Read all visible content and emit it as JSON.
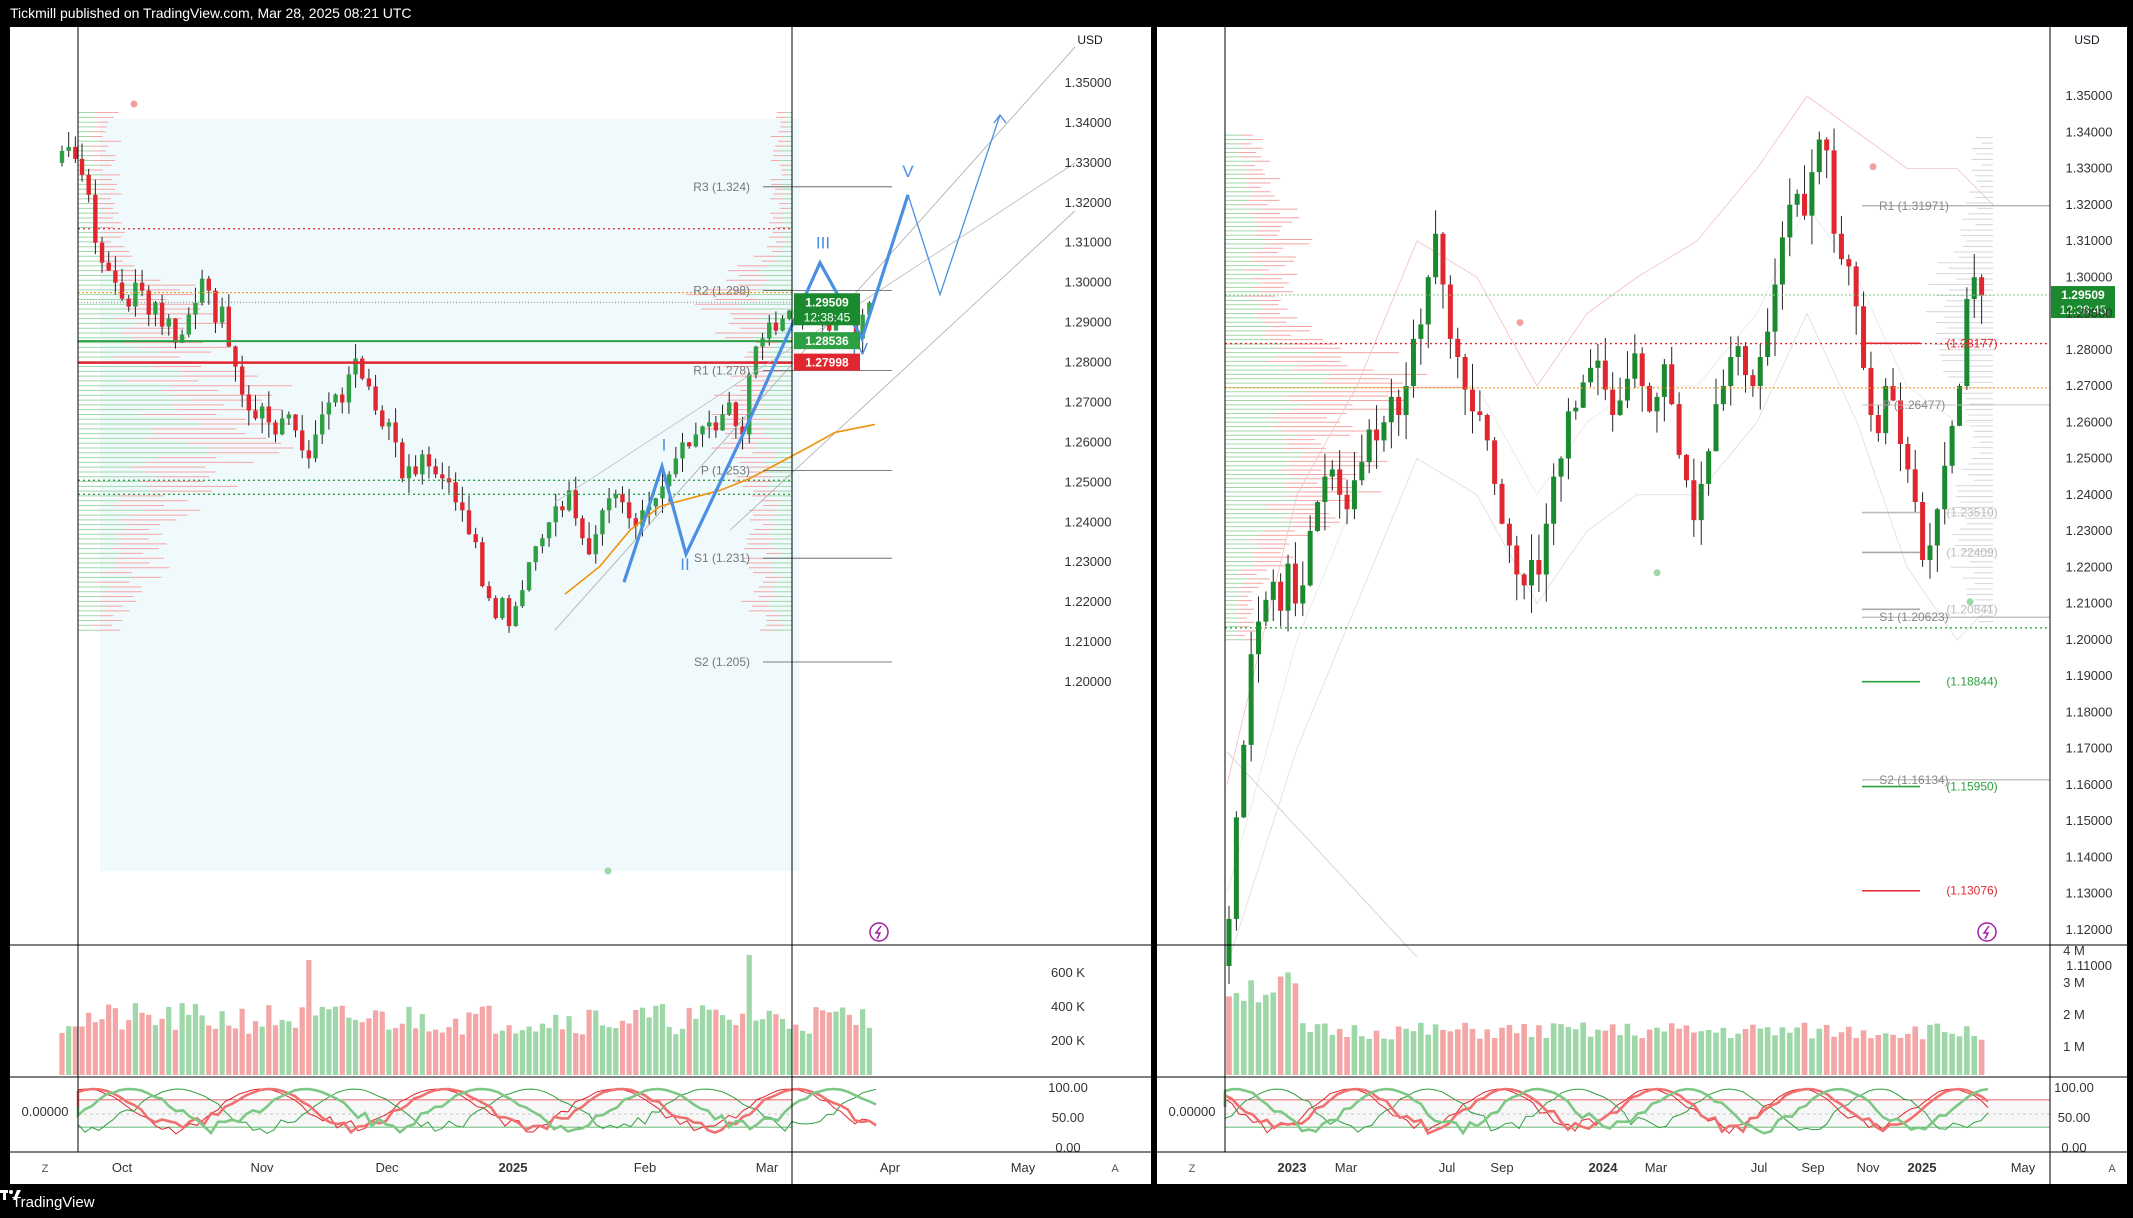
{
  "header": {
    "publisher": "Tickmill published on TradingView.com, Mar 28, 2025 08:21 UTC"
  },
  "footer": {
    "brand": "TradingView"
  },
  "colors": {
    "up": "#089981",
    "up_bar": "#2ea043",
    "down": "#e0262e",
    "wave": "#4a90e2",
    "ma": "#f0930d"
  },
  "left_chart": {
    "currency": "USD",
    "price_axis": [
      "1.35000",
      "1.34000",
      "1.33000",
      "1.32000",
      "1.31000",
      "1.30000",
      "1.29000",
      "1.28000",
      "1.27000",
      "1.26000",
      "1.25000",
      "1.24000",
      "1.23000",
      "1.22000",
      "1.21000",
      "1.20000"
    ],
    "time_axis": [
      "Oct",
      "Nov",
      "Dec",
      "2025",
      "Feb",
      "Mar",
      "Apr",
      "May"
    ],
    "last_price": "1.29509",
    "countdown": "12:38:45",
    "green_level": "1.28536",
    "red_level": "1.27998",
    "pivots": {
      "r3": "R3 (1.324)",
      "r2": "R2 (1.298)",
      "r1": "R1 (1.278)",
      "p": "P (1.253)",
      "s1": "S1 (1.231)",
      "s2": "S2 (1.205)"
    },
    "waves": {
      "w1": "I",
      "w2": "II",
      "w3": "III",
      "w4": "IV",
      "w5": "V"
    },
    "volume_axis": [
      "600 K",
      "400 K",
      "200 K"
    ],
    "osc_value": "0.00000",
    "osc_axis": [
      "100.00",
      "50.00",
      "0.00"
    ],
    "btn_z": "Z",
    "btn_a": "A"
  },
  "right_chart": {
    "currency": "USD",
    "price_axis": [
      "1.35000",
      "1.34000",
      "1.33000",
      "1.32000",
      "1.31000",
      "1.30000",
      "1.29000",
      "1.28000",
      "1.27000",
      "1.26000",
      "1.25000",
      "1.24000",
      "1.23000",
      "1.22000",
      "1.21000",
      "1.20000",
      "1.19000",
      "1.18000",
      "1.17000",
      "1.16000",
      "1.15000",
      "1.14000",
      "1.13000",
      "1.12000",
      "1.11000"
    ],
    "time_axis": [
      "2023",
      "Mar",
      "Jul",
      "Sep",
      "2024",
      "Mar",
      "Jul",
      "Sep",
      "Nov",
      "2025",
      "May"
    ],
    "last_price": "1.29509",
    "countdown": "12:38:45",
    "pivots": {
      "r1": "R1 (1.31971)",
      "p": "P (1.26477)",
      "s1": "S1 (1.20623)",
      "s2": "S2 (1.16134)"
    },
    "levels": {
      "a": "(1.28177)",
      "b": "(1.23510)",
      "c": "(1.22409)",
      "d": "(1.20841)",
      "e": "(1.18844)",
      "f": "(1.15950)",
      "g": "(1.13076)"
    },
    "volume_axis": [
      "4 M",
      "3 M",
      "2 M",
      "1 M"
    ],
    "osc_value": "0.00000",
    "osc_axis": [
      "100.00",
      "50.00",
      "0.00"
    ],
    "btn_z": "Z",
    "btn_a": "A"
  },
  "chart_data": [
    {
      "type": "candlestick",
      "title": "",
      "interval": "daily",
      "x": [
        "Oct",
        "Nov",
        "Dec",
        "2025",
        "Feb",
        "Mar",
        "Apr",
        "May"
      ],
      "ylim": [
        1.195,
        1.355
      ],
      "closes": [
        1.333,
        1.334,
        1.331,
        1.327,
        1.322,
        1.31,
        1.305,
        1.303,
        1.3,
        1.296,
        1.294,
        1.3,
        1.298,
        1.292,
        1.295,
        1.289,
        1.291,
        1.285,
        1.287,
        1.292,
        1.295,
        1.301,
        1.298,
        1.29,
        1.294,
        1.284,
        1.279,
        1.272,
        1.268,
        1.266,
        1.269,
        1.265,
        1.262,
        1.266,
        1.267,
        1.263,
        1.258,
        1.256,
        1.262,
        1.267,
        1.27,
        1.272,
        1.27,
        1.277,
        1.281,
        1.276,
        1.274,
        1.268,
        1.264,
        1.265,
        1.26,
        1.251,
        1.254,
        1.252,
        1.257,
        1.254,
        1.252,
        1.251,
        1.25,
        1.245,
        1.243,
        1.237,
        1.235,
        1.224,
        1.221,
        1.216,
        1.221,
        1.214,
        1.219,
        1.223,
        1.23,
        1.234,
        1.236,
        1.24,
        1.244,
        1.243,
        1.248,
        1.241,
        1.236,
        1.232,
        1.237,
        1.243,
        1.246,
        1.247,
        1.245,
        1.241,
        1.239,
        1.243,
        1.244,
        1.246,
        1.249,
        1.252,
        1.256,
        1.26,
        1.259,
        1.262,
        1.264,
        1.265,
        1.263,
        1.267,
        1.27,
        1.264,
        1.262,
        1.277,
        1.284,
        1.286,
        1.29,
        1.288,
        1.291,
        1.293,
        1.292,
        1.294,
        1.296,
        1.293,
        1.291,
        1.288,
        1.293,
        1.294,
        1.29,
        1.286,
        1.292,
        1.295
      ],
      "levels": {
        "R3": 1.324,
        "R2": 1.298,
        "R1": 1.278,
        "P": 1.253,
        "S1": 1.231,
        "S2": 1.205,
        "green": 1.28536,
        "red": 1.27998,
        "last": 1.29509
      }
    },
    {
      "type": "candlestick",
      "title": "",
      "interval": "weekly",
      "x": [
        "2023",
        "Mar",
        "Jul",
        "Sep",
        "2024",
        "Mar",
        "Jul",
        "Sep",
        "Nov",
        "2025",
        "May"
      ],
      "ylim": [
        1.105,
        1.355
      ],
      "closes": [
        1.123,
        1.151,
        1.171,
        1.196,
        1.205,
        1.211,
        1.216,
        1.208,
        1.221,
        1.21,
        1.215,
        1.23,
        1.238,
        1.245,
        1.247,
        1.24,
        1.236,
        1.244,
        1.249,
        1.258,
        1.255,
        1.26,
        1.267,
        1.262,
        1.27,
        1.283,
        1.287,
        1.3,
        1.312,
        1.298,
        1.283,
        1.278,
        1.269,
        1.263,
        1.262,
        1.255,
        1.243,
        1.232,
        1.226,
        1.218,
        1.215,
        1.222,
        1.218,
        1.232,
        1.245,
        1.25,
        1.263,
        1.264,
        1.271,
        1.275,
        1.277,
        1.269,
        1.262,
        1.266,
        1.272,
        1.279,
        1.27,
        1.263,
        1.267,
        1.276,
        1.265,
        1.251,
        1.244,
        1.233,
        1.243,
        1.252,
        1.265,
        1.27,
        1.278,
        1.281,
        1.273,
        1.27,
        1.278,
        1.285,
        1.298,
        1.311,
        1.32,
        1.323,
        1.317,
        1.329,
        1.338,
        1.335,
        1.312,
        1.305,
        1.303,
        1.292,
        1.275,
        1.262,
        1.257,
        1.27,
        1.266,
        1.254,
        1.247,
        1.238,
        1.222,
        1.226,
        1.236,
        1.248,
        1.259,
        1.27,
        1.294,
        1.3,
        1.295
      ],
      "levels": {
        "R1": 1.31971,
        "P": 1.26477,
        "S1": 1.20623,
        "S2": 1.16134,
        "last": 1.29509
      }
    }
  ]
}
